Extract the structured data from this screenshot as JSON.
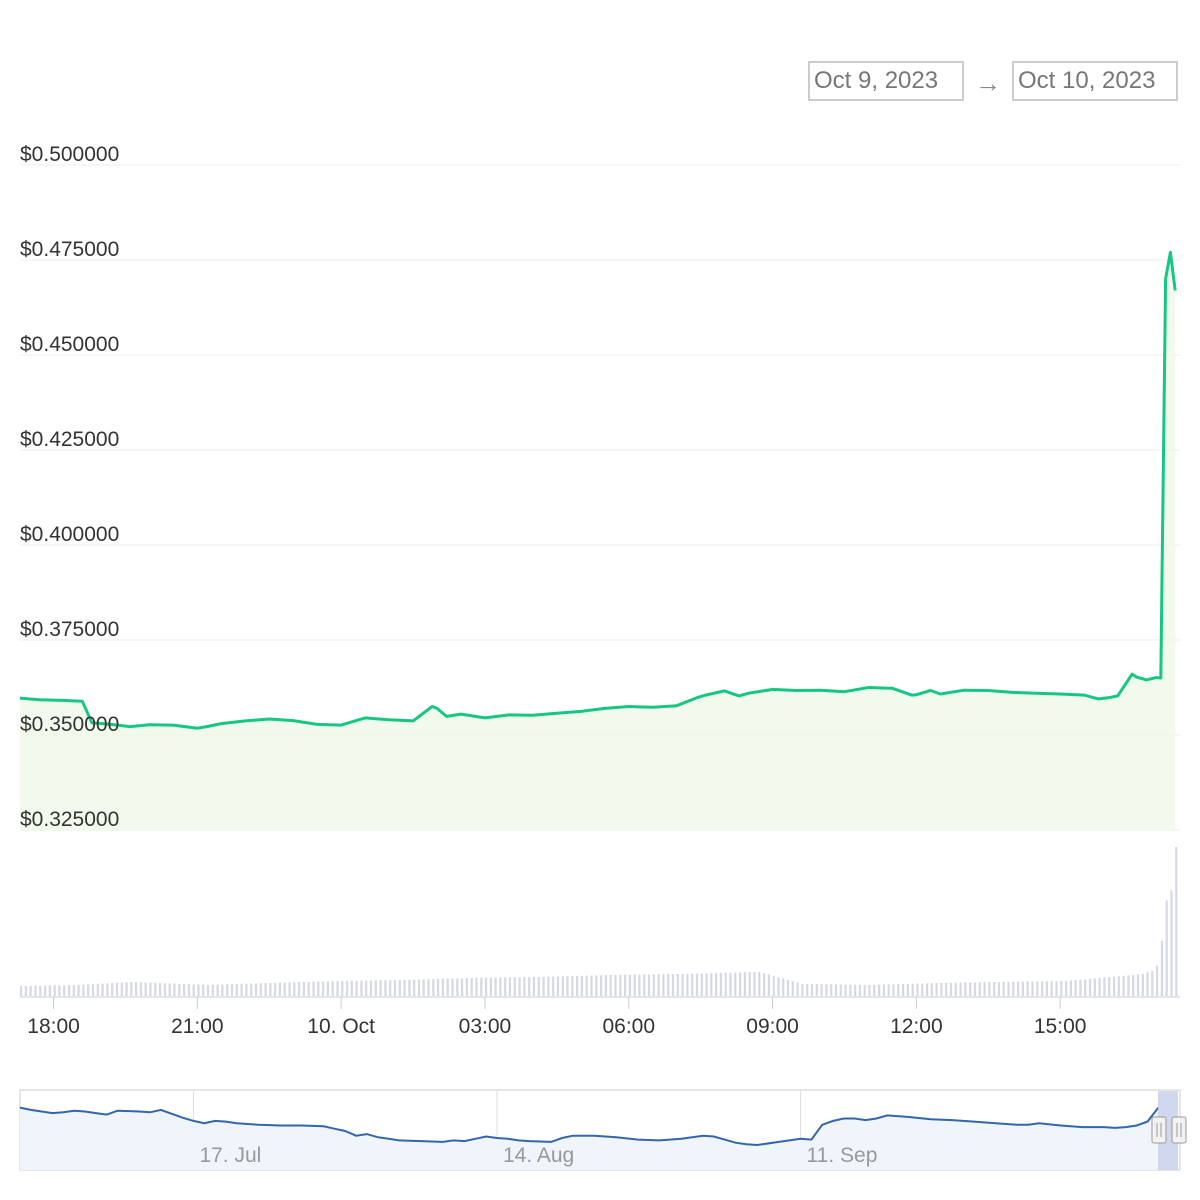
{
  "range_selector": {
    "from": "Oct 9, 2023",
    "arrow": "→",
    "to": "Oct 10, 2023"
  },
  "colors": {
    "price_line": "#16c784",
    "price_fill": "#ecf8e6",
    "volume_bar": "#d5d9e5",
    "navigator_line": "#3366aa",
    "navigator_fill": "#f0f4fb",
    "grid": "#eeeeee",
    "axis_text": "#333333",
    "nav_text": "#999999"
  },
  "chart_data": {
    "type": "line",
    "y_axis": {
      "ticks": [
        "$0.500000",
        "$0.475000",
        "$0.450000",
        "$0.425000",
        "$0.400000",
        "$0.375000",
        "$0.350000",
        "$0.325000"
      ],
      "tick_values": [
        0.5,
        0.475,
        0.45,
        0.425,
        0.4,
        0.375,
        0.35,
        0.325
      ],
      "ylim": [
        0.325,
        0.5
      ]
    },
    "x_axis": {
      "ticks": [
        "18:00",
        "21:00",
        "10. Oct",
        "03:00",
        "06:00",
        "09:00",
        "12:00",
        "15:00"
      ],
      "tick_hours": [
        18,
        21,
        24,
        27,
        30,
        33,
        36,
        39
      ],
      "xlim_hours": [
        17.3,
        41.5
      ]
    },
    "price_series": {
      "x_hours": [
        17.3,
        17.7,
        18.2,
        18.6,
        18.8,
        19.2,
        19.6,
        20.0,
        20.5,
        21.0,
        21.2,
        21.5,
        22.0,
        22.5,
        23.0,
        23.5,
        24.0,
        24.5,
        25.0,
        25.5,
        25.9,
        26.0,
        26.2,
        26.5,
        27.0,
        27.5,
        28.0,
        28.5,
        29.0,
        29.5,
        30.0,
        30.5,
        31.0,
        31.4,
        31.6,
        32.0,
        32.3,
        32.5,
        33.0,
        33.5,
        34.0,
        34.5,
        35.0,
        35.5,
        35.9,
        36.0,
        36.3,
        36.5,
        37.0,
        37.5,
        38.0,
        38.5,
        39.0,
        39.5,
        39.8,
        40.0,
        40.2,
        40.5,
        40.6,
        40.8,
        41.0,
        41.1,
        41.2,
        41.3,
        41.4
      ],
      "values": [
        0.3597,
        0.3593,
        0.3591,
        0.3589,
        0.3532,
        0.3528,
        0.3522,
        0.3527,
        0.3526,
        0.3518,
        0.3522,
        0.353,
        0.3537,
        0.3542,
        0.3538,
        0.3528,
        0.3526,
        0.3545,
        0.354,
        0.3537,
        0.3575,
        0.357,
        0.3549,
        0.3555,
        0.3545,
        0.3553,
        0.3552,
        0.3557,
        0.3562,
        0.357,
        0.3575,
        0.3573,
        0.3577,
        0.3597,
        0.3605,
        0.3616,
        0.3603,
        0.361,
        0.362,
        0.3617,
        0.3618,
        0.3614,
        0.3625,
        0.3623,
        0.3605,
        0.3606,
        0.3617,
        0.3608,
        0.3618,
        0.3617,
        0.3612,
        0.361,
        0.3608,
        0.3605,
        0.3595,
        0.3598,
        0.3603,
        0.366,
        0.3652,
        0.3645,
        0.3651,
        0.365,
        0.47,
        0.477,
        0.467
      ]
    },
    "volume_series": {
      "note_free": true,
      "x_hours": [
        17.3,
        18.5,
        19.6,
        21.2,
        22.5,
        24.0,
        25.3,
        26.7,
        28.2,
        29.7,
        31.2,
        32.7,
        33.6,
        35.0,
        36.5,
        37.8,
        39.1,
        40.3,
        40.7,
        40.9,
        41.0,
        41.1,
        41.2,
        41.3,
        41.4
      ],
      "values": [
        10,
        11,
        14,
        11,
        13,
        15,
        16,
        18,
        19,
        21,
        22,
        24,
        12,
        11,
        13,
        14,
        15,
        20,
        22,
        25,
        30,
        55,
        95,
        105,
        148
      ],
      "ymax": 150
    },
    "navigator": {
      "ticks": [
        "17. Jul",
        "14. Aug",
        "11. Sep"
      ],
      "tick_days": [
        16,
        44,
        72
      ],
      "x_days": [
        0,
        1,
        3,
        4,
        5,
        6,
        7,
        8,
        9,
        11,
        12,
        13,
        14,
        15,
        16,
        17,
        18,
        19,
        20,
        22,
        24,
        26,
        28,
        29,
        30,
        31,
        32,
        33,
        35,
        37,
        39,
        40,
        41,
        42,
        43,
        44,
        45,
        46,
        47,
        49,
        50,
        51,
        53,
        55,
        57,
        59,
        61,
        63,
        64,
        65,
        66,
        67,
        68,
        70,
        72,
        73,
        74,
        75,
        76,
        77,
        78,
        79,
        80,
        82,
        84,
        86,
        88,
        90,
        92,
        93,
        94,
        96,
        98,
        100,
        101,
        102,
        103,
        104,
        105
      ],
      "values": [
        0.8,
        0.77,
        0.73,
        0.74,
        0.76,
        0.75,
        0.73,
        0.71,
        0.76,
        0.75,
        0.74,
        0.77,
        0.72,
        0.67,
        0.63,
        0.6,
        0.63,
        0.62,
        0.6,
        0.58,
        0.57,
        0.57,
        0.56,
        0.53,
        0.5,
        0.44,
        0.46,
        0.42,
        0.38,
        0.37,
        0.36,
        0.38,
        0.37,
        0.4,
        0.43,
        0.41,
        0.4,
        0.38,
        0.37,
        0.36,
        0.41,
        0.44,
        0.44,
        0.42,
        0.39,
        0.38,
        0.4,
        0.44,
        0.43,
        0.39,
        0.35,
        0.33,
        0.32,
        0.36,
        0.4,
        0.39,
        0.58,
        0.63,
        0.66,
        0.66,
        0.64,
        0.66,
        0.7,
        0.68,
        0.65,
        0.64,
        0.62,
        0.6,
        0.58,
        0.58,
        0.6,
        0.57,
        0.55,
        0.55,
        0.54,
        0.55,
        0.57,
        0.62,
        0.8
      ],
      "xlim_days": [
        0,
        107
      ],
      "ylim": [
        0,
        1
      ]
    }
  }
}
